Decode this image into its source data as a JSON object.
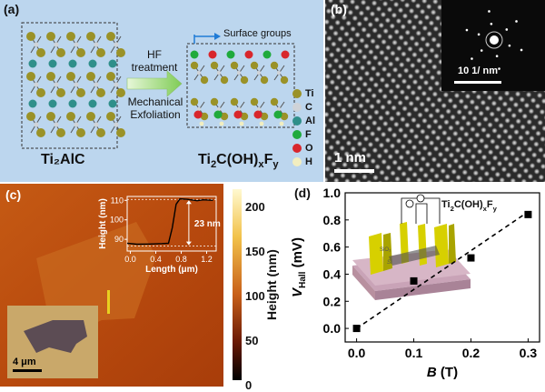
{
  "panel_a": {
    "label": "(a)",
    "left_formula": "Ti₂AlC",
    "right_formula": {
      "base": "Ti",
      "s1": "2",
      "mid": "C(OH)",
      "s2": "x",
      "end": "F",
      "s3": "y"
    },
    "surface_groups": "Surface groups",
    "hf_line1": "HF",
    "hf_line2": "treatment",
    "mech_line1": "Mechanical",
    "mech_line2": "Exfoliation",
    "legend": [
      {
        "symbol": "Ti",
        "color": "#9a9228"
      },
      {
        "symbol": "C",
        "color": "#cfd3d8"
      },
      {
        "symbol": "Al",
        "color": "#2f8f8a"
      },
      {
        "symbol": "F",
        "color": "#1faa3c"
      },
      {
        "symbol": "O",
        "color": "#d8262c"
      },
      {
        "symbol": "H",
        "color": "#f2eec0"
      }
    ]
  },
  "panel_b": {
    "label": "(b)",
    "scalebar": "1 nm",
    "fft_scalebar": "10 1/ nm"
  },
  "panel_c": {
    "label": "(c)",
    "colorbar_label": "Height (nm)",
    "colorbar_ticks": [
      "200",
      "150",
      "100",
      "50",
      "0"
    ],
    "inset_scalebar": "4 μm",
    "profile": {
      "ylabel": "Height (nm)",
      "xlabel": "Length (μm)",
      "yticks": [
        "110",
        "100",
        "90"
      ],
      "xticks": [
        "0.0",
        "0.4",
        "0.8",
        "1.2"
      ],
      "step_label": "23 nm"
    }
  },
  "panel_d": {
    "label": "(d)",
    "device_label": {
      "base": "Ti",
      "s1": "2",
      "mid": "C(OH)",
      "s2": "x",
      "end": "F",
      "s3": "y"
    },
    "device_layers": [
      "SiO₂",
      "Si"
    ]
  },
  "chart_data": {
    "type": "scatter",
    "xlabel": "B (T)",
    "ylabel": "V_Hall (mV)",
    "xlim": [
      -0.02,
      0.32
    ],
    "ylim": [
      -0.1,
      1.0
    ],
    "xticks": [
      "0.0",
      "0.1",
      "0.2",
      "0.3"
    ],
    "yticks": [
      "0.0",
      "0.2",
      "0.4",
      "0.6",
      "0.8",
      "1.0"
    ],
    "points": [
      {
        "x": 0.0,
        "y": 0.0
      },
      {
        "x": 0.1,
        "y": 0.35
      },
      {
        "x": 0.2,
        "y": 0.52
      },
      {
        "x": 0.3,
        "y": 0.84
      }
    ],
    "fit_line": {
      "x": [
        0.0,
        0.3
      ],
      "y": [
        0.0,
        0.86
      ]
    },
    "grid": false
  }
}
